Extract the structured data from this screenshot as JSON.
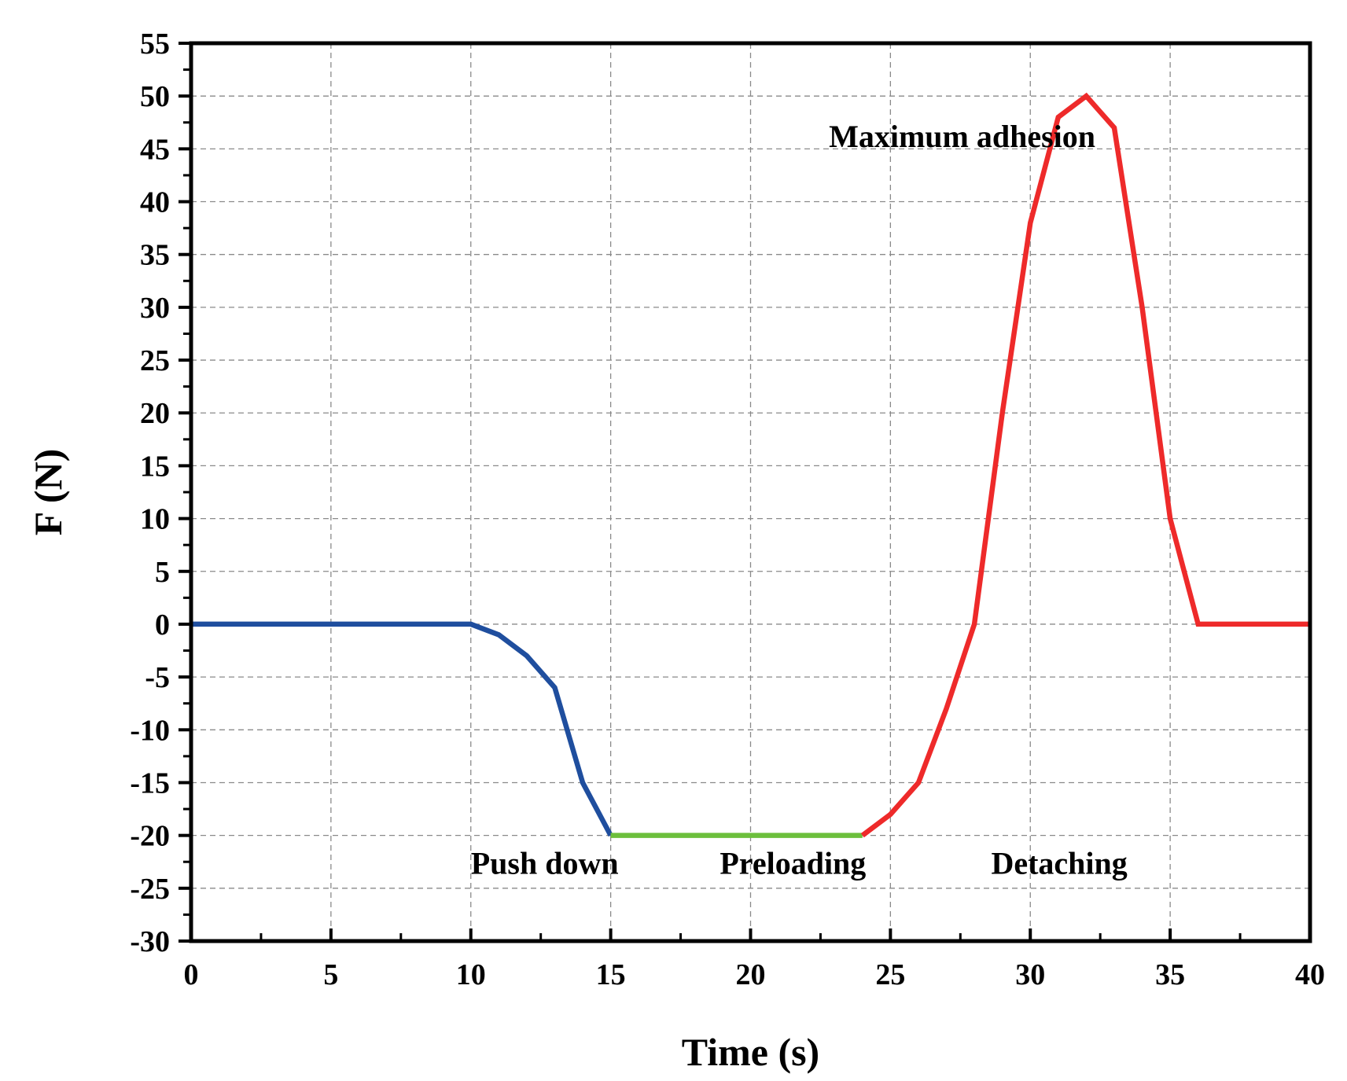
{
  "chart_data": {
    "type": "line",
    "title": "",
    "xlabel": "Time (s)",
    "ylabel": "F (N)",
    "xlim": [
      0,
      40
    ],
    "ylim": [
      -30,
      55
    ],
    "xticks": [
      0,
      5,
      10,
      15,
      20,
      25,
      30,
      35,
      40
    ],
    "yticks": [
      55,
      50,
      45,
      40,
      35,
      30,
      25,
      20,
      15,
      10,
      5,
      0,
      -5,
      -10,
      -15,
      -20,
      -25,
      -30
    ],
    "grid": true,
    "series": [
      {
        "name": "Push down",
        "color": "#1f4e9e",
        "x": [
          0,
          5,
          10,
          11,
          12,
          13,
          14,
          15
        ],
        "y": [
          0,
          0,
          0,
          -1,
          -3,
          -6,
          -15,
          -20
        ]
      },
      {
        "name": "Preloading",
        "color": "#6cbf3c",
        "x": [
          15,
          16,
          17,
          18,
          19,
          20,
          21,
          22,
          23,
          24
        ],
        "y": [
          -20,
          -20,
          -20,
          -20,
          -20,
          -20,
          -20,
          -20,
          -20,
          -20
        ]
      },
      {
        "name": "Detaching",
        "color": "#ee2a2a",
        "x": [
          24,
          25,
          26,
          27,
          28,
          29,
          30,
          31,
          32,
          33,
          34,
          35,
          36,
          37,
          38,
          39,
          40
        ],
        "y": [
          -20,
          -18,
          -15,
          -8,
          0,
          20,
          38,
          48,
          50,
          47,
          30,
          10,
          0,
          0,
          0,
          0,
          0
        ]
      }
    ],
    "annotations": [
      {
        "text": "Maximum adhesion",
        "x": 22.8,
        "y": 46.2
      },
      {
        "text": "Push down",
        "x": 10,
        "y": -22.6
      },
      {
        "text": "Preloading",
        "x": 18.9,
        "y": -22.6
      },
      {
        "text": "Detaching",
        "x": 28.6,
        "y": -22.6
      }
    ]
  }
}
